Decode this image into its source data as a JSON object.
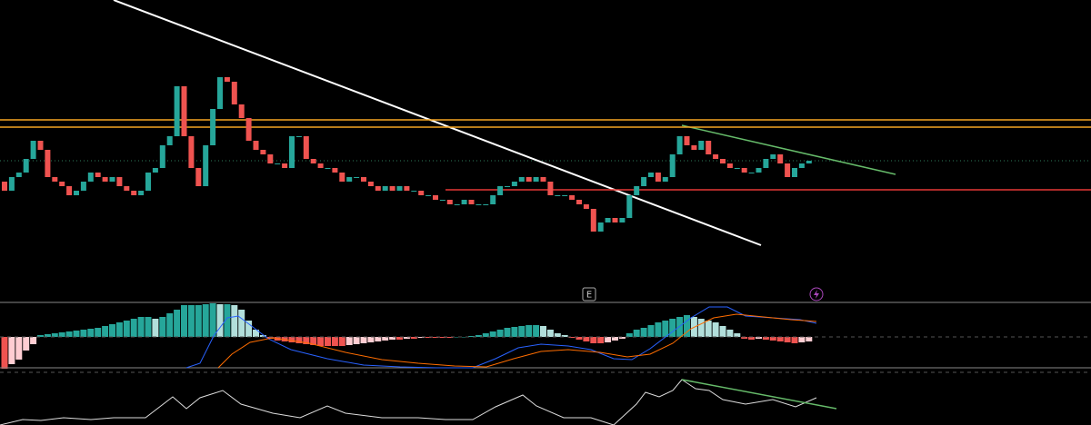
{
  "chart_data": [
    {
      "type": "candlestick",
      "up_color": "#26a69a",
      "down_color": "#ef5350",
      "ylim": [
        0,
        330
      ],
      "open": [
        130,
        120,
        135,
        140,
        155,
        175,
        165,
        135,
        130,
        125,
        115,
        120,
        130,
        140,
        135,
        130,
        135,
        125,
        120,
        115,
        120,
        140,
        145,
        170,
        180,
        235,
        180,
        145,
        125,
        170,
        210,
        245,
        240,
        215,
        200,
        175,
        165,
        160,
        150,
        150,
        145,
        180,
        180,
        155,
        150,
        145,
        145,
        140,
        130,
        135,
        135,
        130,
        125,
        120,
        125,
        120,
        125,
        120,
        120,
        115,
        115,
        110,
        110,
        105,
        105,
        110,
        105,
        105,
        105,
        115,
        125,
        125,
        130,
        135,
        130,
        135,
        130,
        115,
        115,
        115,
        110,
        105,
        100,
        75,
        85,
        90,
        85,
        90,
        115,
        125,
        135,
        140,
        130,
        135,
        160,
        180,
        170,
        165,
        175,
        160,
        155,
        150,
        145,
        145,
        140,
        140,
        145,
        155,
        160,
        150,
        135,
        145,
        150
      ],
      "close": [
        120,
        135,
        140,
        155,
        175,
        165,
        135,
        130,
        125,
        115,
        120,
        130,
        140,
        135,
        130,
        135,
        125,
        120,
        115,
        120,
        140,
        145,
        170,
        180,
        235,
        180,
        145,
        125,
        170,
        210,
        245,
        240,
        215,
        200,
        175,
        165,
        160,
        150,
        150,
        145,
        180,
        180,
        155,
        150,
        145,
        145,
        140,
        130,
        135,
        135,
        130,
        125,
        120,
        125,
        120,
        125,
        120,
        120,
        115,
        115,
        110,
        110,
        105,
        105,
        110,
        105,
        105,
        105,
        115,
        125,
        125,
        130,
        135,
        130,
        135,
        130,
        115,
        115,
        115,
        110,
        105,
        100,
        75,
        85,
        90,
        85,
        90,
        115,
        125,
        135,
        140,
        130,
        135,
        160,
        180,
        170,
        165,
        175,
        160,
        155,
        150,
        145,
        145,
        140,
        140,
        145,
        155,
        160,
        150,
        135,
        145,
        150,
        153
      ],
      "levels": [
        {
          "value": 198,
          "color": "#f5a623"
        },
        {
          "value": 190,
          "color": "#f5a623"
        },
        {
          "value": 121,
          "color": "#e53935"
        }
      ],
      "annotations": [
        "E"
      ]
    },
    {
      "type": "histogram",
      "ylim": [
        -40,
        40
      ],
      "pos_color": "#26a69a",
      "pos_fade": "#b2dfdb",
      "neg_color": "#ef5350",
      "neg_fade": "#ffcdd2",
      "values": [
        -35,
        -30,
        -25,
        -15,
        -8,
        2,
        3,
        4,
        5,
        6,
        7,
        8,
        9,
        10,
        12,
        14,
        16,
        18,
        20,
        22,
        22,
        20,
        22,
        26,
        30,
        35,
        35,
        35,
        36,
        37,
        36,
        36,
        35,
        30,
        18,
        8,
        2,
        -2,
        -4,
        -5,
        -6,
        -7,
        -8,
        -9,
        -10,
        -10,
        -10,
        -10,
        -9,
        -8,
        -7,
        -6,
        -5,
        -4,
        -3,
        -3,
        -2,
        -2,
        -1,
        -1,
        -1,
        -1,
        -1,
        0,
        0,
        1,
        2,
        4,
        6,
        8,
        10,
        11,
        12,
        13,
        13,
        12,
        8,
        4,
        2,
        -1,
        -3,
        -5,
        -7,
        -7,
        -6,
        -4,
        -2,
        4,
        8,
        10,
        13,
        16,
        18,
        20,
        22,
        24,
        22,
        20,
        18,
        16,
        12,
        8,
        4,
        -2,
        -3,
        -2,
        -3,
        -4,
        -5,
        -6,
        -7,
        -6,
        -5
      ]
    }
  ]
}
